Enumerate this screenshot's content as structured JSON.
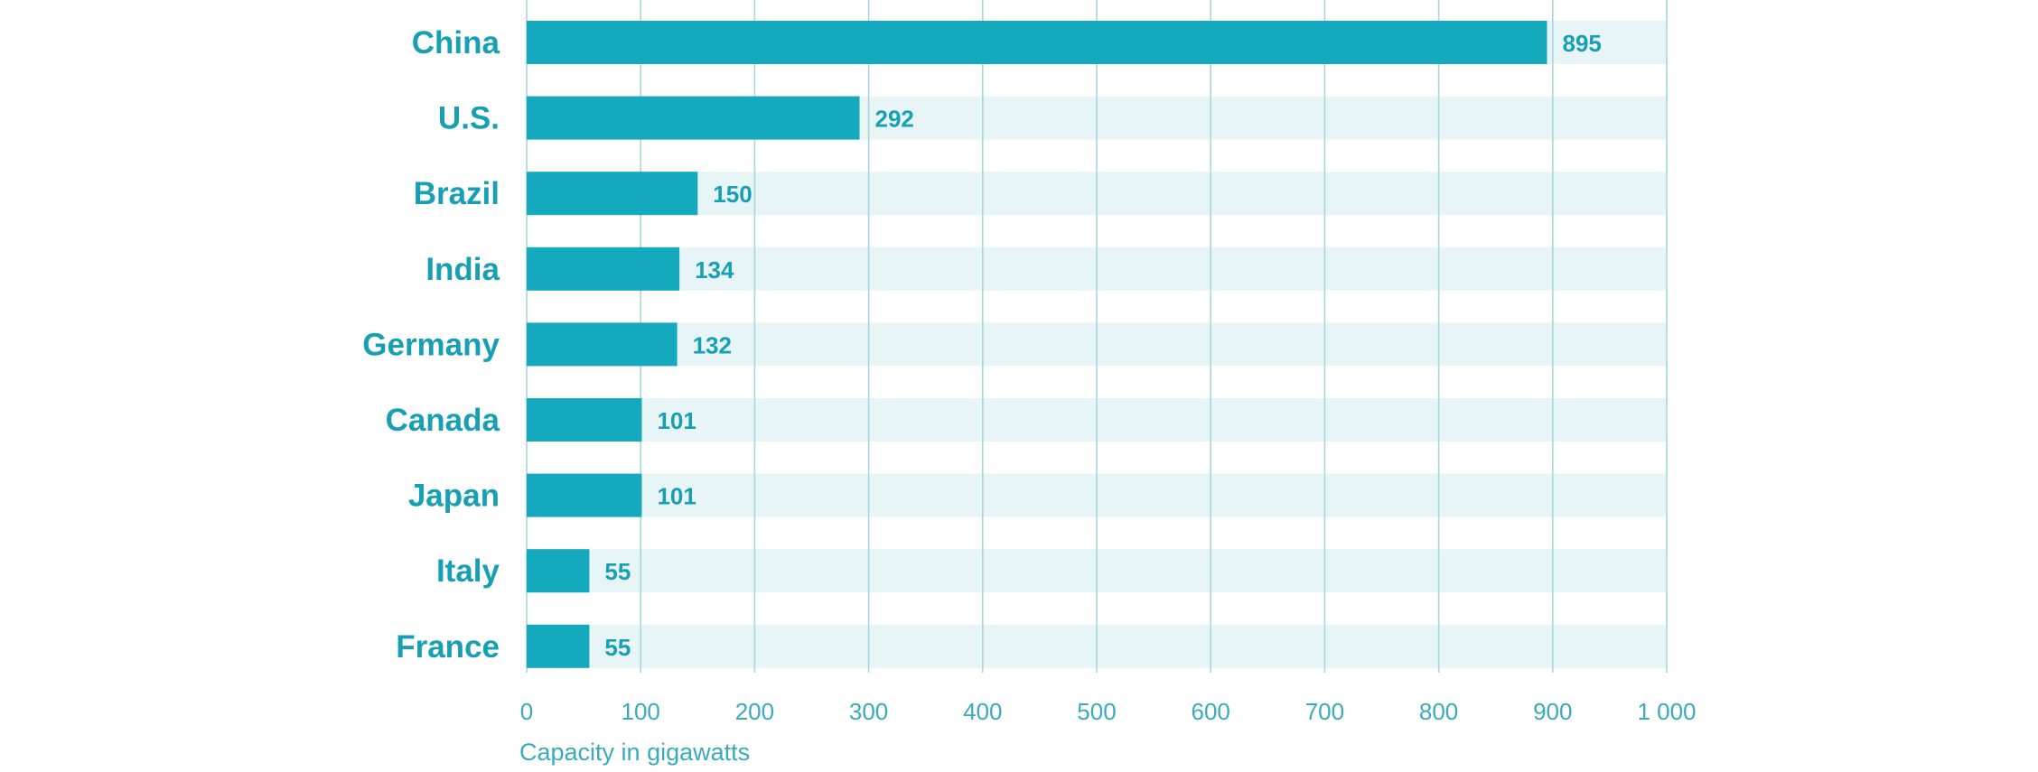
{
  "chart_data": {
    "type": "bar",
    "orientation": "horizontal",
    "categories": [
      "China",
      "U.S.",
      "Brazil",
      "India",
      "Germany",
      "Canada",
      "Japan",
      "Italy",
      "France"
    ],
    "values": [
      895,
      292,
      150,
      134,
      132,
      101,
      101,
      55,
      55
    ],
    "value_labels": [
      "895",
      "292",
      "150",
      "134",
      "132",
      "101",
      "101",
      "55",
      "55"
    ],
    "xlabel": "Capacity in gigawatts",
    "xlim": [
      0,
      1000
    ],
    "xticks": [
      0,
      100,
      200,
      300,
      400,
      500,
      600,
      700,
      800,
      900,
      1000
    ],
    "xtick_labels": [
      "0",
      "100",
      "200",
      "300",
      "400",
      "500",
      "600",
      "700",
      "800",
      "900",
      "1 000"
    ],
    "grid": "vertical",
    "colors": {
      "bar": "#14a9bc",
      "band": "#e8f5f6",
      "grid": "#a6d7de",
      "text": "#17a0b4"
    }
  }
}
